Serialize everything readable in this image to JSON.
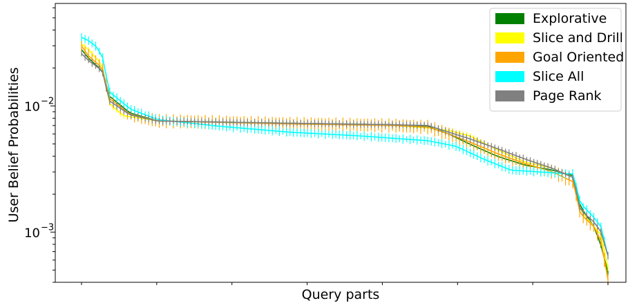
{
  "chart_data": {
    "type": "line",
    "title": "",
    "xlabel": "Query parts",
    "ylabel": "User Belief Probabilities",
    "yscale": "log",
    "ylim": [
      0.0004,
      0.065
    ],
    "yticks": [
      {
        "value": 0.01,
        "base": "10",
        "exp": "−2"
      },
      {
        "value": 0.001,
        "base": "10",
        "exp": "−3"
      }
    ],
    "x_tick_count": 8,
    "grid": false,
    "legend_position": "top-right",
    "error_bars": true,
    "n_points": 150,
    "series": [
      {
        "name": "Explorative",
        "color": "#008000",
        "anchors": [
          [
            0,
            0.028
          ],
          [
            2,
            0.024
          ],
          [
            6,
            0.019
          ],
          [
            8,
            0.012
          ],
          [
            14,
            0.0088
          ],
          [
            22,
            0.0076
          ],
          [
            60,
            0.0073
          ],
          [
            90,
            0.0071
          ],
          [
            100,
            0.0069
          ],
          [
            106,
            0.006
          ],
          [
            112,
            0.005
          ],
          [
            120,
            0.004
          ],
          [
            128,
            0.0034
          ],
          [
            136,
            0.0031
          ],
          [
            142,
            0.0028
          ],
          [
            144,
            0.0016
          ],
          [
            148,
            0.0011
          ],
          [
            150,
            0.00078
          ],
          [
            152,
            0.00048
          ]
        ],
        "err": 0.05
      },
      {
        "name": "Slice and Drill",
        "color": "#ffff00",
        "anchors": [
          [
            0,
            0.031
          ],
          [
            2,
            0.028
          ],
          [
            6,
            0.021
          ],
          [
            8,
            0.0105
          ],
          [
            12,
            0.0084
          ],
          [
            22,
            0.0076
          ],
          [
            60,
            0.0073
          ],
          [
            90,
            0.007
          ],
          [
            100,
            0.0067
          ],
          [
            106,
            0.0064
          ],
          [
            112,
            0.0058
          ],
          [
            120,
            0.0045
          ],
          [
            128,
            0.0036
          ],
          [
            136,
            0.0032
          ],
          [
            142,
            0.0027
          ],
          [
            144,
            0.0015
          ],
          [
            148,
            0.0011
          ],
          [
            150,
            0.00095
          ],
          [
            152,
            0.00052
          ]
        ],
        "err": 0.06
      },
      {
        "name": "Goal Oriented",
        "color": "#ffa500",
        "anchors": [
          [
            0,
            0.03
          ],
          [
            2,
            0.025
          ],
          [
            6,
            0.02
          ],
          [
            8,
            0.0115
          ],
          [
            14,
            0.0086
          ],
          [
            22,
            0.0076
          ],
          [
            60,
            0.0072
          ],
          [
            90,
            0.007
          ],
          [
            100,
            0.0068
          ],
          [
            106,
            0.006
          ],
          [
            112,
            0.0052
          ],
          [
            120,
            0.0042
          ],
          [
            128,
            0.0035
          ],
          [
            136,
            0.003
          ],
          [
            142,
            0.0025
          ],
          [
            144,
            0.0014
          ],
          [
            148,
            0.0011
          ],
          [
            150,
            0.00085
          ],
          [
            152,
            0.00042
          ]
        ],
        "err": 0.14
      },
      {
        "name": "Slice All",
        "color": "#00ffff",
        "anchors": [
          [
            0,
            0.035
          ],
          [
            2,
            0.033
          ],
          [
            4,
            0.03
          ],
          [
            6,
            0.025
          ],
          [
            8,
            0.013
          ],
          [
            14,
            0.0095
          ],
          [
            22,
            0.0078
          ],
          [
            40,
            0.0069
          ],
          [
            60,
            0.0062
          ],
          [
            80,
            0.0058
          ],
          [
            100,
            0.0053
          ],
          [
            108,
            0.0048
          ],
          [
            116,
            0.0038
          ],
          [
            124,
            0.0031
          ],
          [
            132,
            0.003
          ],
          [
            140,
            0.0029
          ],
          [
            142,
            0.0029
          ],
          [
            144,
            0.0017
          ],
          [
            148,
            0.0013
          ],
          [
            150,
            0.0011
          ],
          [
            152,
            0.00065
          ]
        ],
        "err": 0.09
      },
      {
        "name": "Page Rank",
        "color": "#808080",
        "anchors": [
          [
            0,
            0.026
          ],
          [
            2,
            0.023
          ],
          [
            6,
            0.019
          ],
          [
            8,
            0.011
          ],
          [
            14,
            0.0085
          ],
          [
            22,
            0.0076
          ],
          [
            60,
            0.0073
          ],
          [
            90,
            0.0071
          ],
          [
            100,
            0.007
          ],
          [
            106,
            0.0062
          ],
          [
            112,
            0.0055
          ],
          [
            120,
            0.0046
          ],
          [
            128,
            0.0038
          ],
          [
            136,
            0.0032
          ],
          [
            142,
            0.0027
          ],
          [
            144,
            0.0015
          ],
          [
            148,
            0.0012
          ],
          [
            150,
            0.001
          ],
          [
            152,
            0.00065
          ]
        ],
        "err": 0.07
      }
    ]
  }
}
